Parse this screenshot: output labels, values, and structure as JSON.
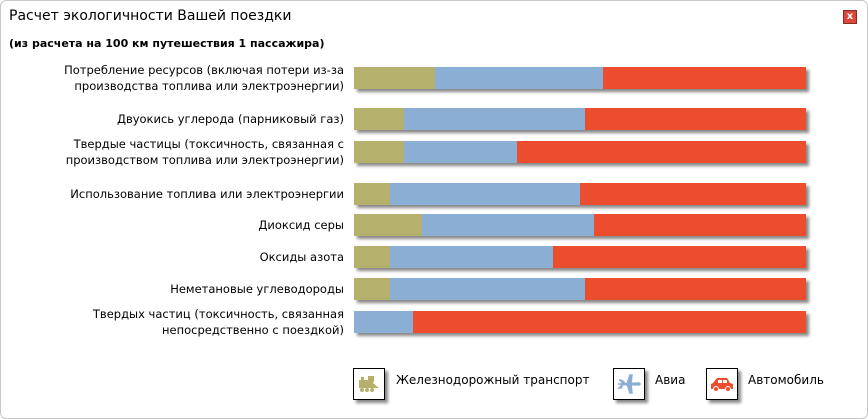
{
  "dialog": {
    "close_label": "x"
  },
  "chart_data": {
    "type": "bar",
    "stacked": true,
    "orientation": "horizontal",
    "title": "Расчет экологичности Вашей поездки",
    "subtitle": "(из расчета на 100 км путешествия 1 пассажира)",
    "xlabel": "",
    "ylabel": "",
    "xlim": [
      0,
      100
    ],
    "categories": [
      "Потребление ресурсов (включая потери из-за производства топлива или электроэнергии)",
      "Двуокись углерода (парниковый газ)",
      "Твердые частицы (токсичность, связанная с производством топлива или электроэнергии)",
      "Использование топлива или электроэнергии",
      "Диоксид серы",
      "Оксиды азота",
      "Неметановые углеводороды",
      "Твердых частиц (токсичность, связанная непосредственно с поездкой)"
    ],
    "series": [
      {
        "name": "Железнодорожный транспорт",
        "color": "#b5b06c",
        "values": [
          18,
          11,
          11,
          8,
          15,
          8,
          8,
          0
        ]
      },
      {
        "name": "Авиа",
        "color": "#8aaed4",
        "values": [
          37,
          40,
          25,
          42,
          38,
          36,
          43,
          13
        ]
      },
      {
        "name": "Автомобиль",
        "color": "#ec4d2e",
        "values": [
          45,
          49,
          64,
          50,
          47,
          56,
          49,
          87
        ]
      }
    ],
    "legend": "bottom-right",
    "grid": false
  }
}
